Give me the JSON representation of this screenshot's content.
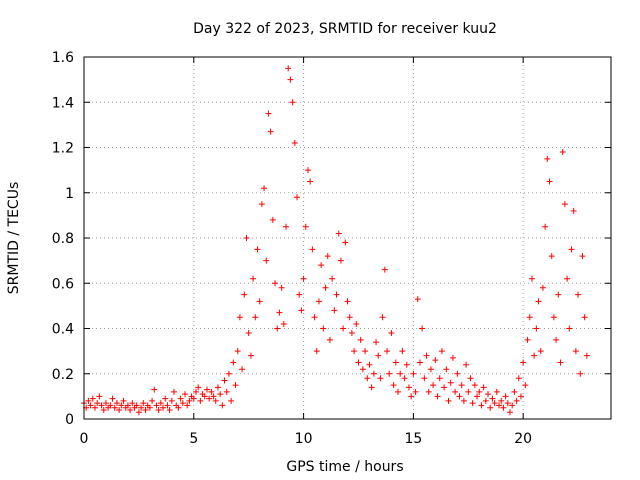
{
  "chart_data": {
    "type": "scatter",
    "title": "Day 322 of 2023, SRMTID for receiver kuu2",
    "xlabel": "GPS time / hours",
    "ylabel": "SRMTID / TECUs",
    "xlim": [
      0,
      24
    ],
    "ylim": [
      0,
      1.6
    ],
    "xticks": [
      0,
      5,
      10,
      15,
      20
    ],
    "xtick_labels": [
      "0",
      "5",
      "10",
      "15",
      "20"
    ],
    "yticks": [
      0,
      0.2,
      0.4,
      0.6,
      0.8,
      1,
      1.2,
      1.4,
      1.6
    ],
    "ytick_labels": [
      "0",
      "0.2",
      "0.4",
      "0.6",
      "0.8",
      "1",
      "1.2",
      "1.4",
      "1.6"
    ],
    "grid": true,
    "marker": "plus",
    "color": "#ff0000",
    "series": [
      {
        "name": "SRMTID",
        "points": [
          [
            0.0,
            0.07
          ],
          [
            0.1,
            0.05
          ],
          [
            0.2,
            0.08
          ],
          [
            0.3,
            0.06
          ],
          [
            0.4,
            0.09
          ],
          [
            0.5,
            0.05
          ],
          [
            0.6,
            0.07
          ],
          [
            0.7,
            0.1
          ],
          [
            0.8,
            0.06
          ],
          [
            0.9,
            0.04
          ],
          [
            1.0,
            0.07
          ],
          [
            1.1,
            0.05
          ],
          [
            1.2,
            0.06
          ],
          [
            1.3,
            0.09
          ],
          [
            1.4,
            0.05
          ],
          [
            1.5,
            0.07
          ],
          [
            1.6,
            0.04
          ],
          [
            1.7,
            0.06
          ],
          [
            1.8,
            0.08
          ],
          [
            1.9,
            0.05
          ],
          [
            2.0,
            0.06
          ],
          [
            2.1,
            0.04
          ],
          [
            2.2,
            0.07
          ],
          [
            2.3,
            0.05
          ],
          [
            2.4,
            0.06
          ],
          [
            2.5,
            0.03
          ],
          [
            2.6,
            0.05
          ],
          [
            2.7,
            0.07
          ],
          [
            2.8,
            0.04
          ],
          [
            2.9,
            0.06
          ],
          [
            3.0,
            0.05
          ],
          [
            3.1,
            0.08
          ],
          [
            3.2,
            0.13
          ],
          [
            3.3,
            0.06
          ],
          [
            3.4,
            0.04
          ],
          [
            3.5,
            0.07
          ],
          [
            3.6,
            0.05
          ],
          [
            3.7,
            0.09
          ],
          [
            3.8,
            0.06
          ],
          [
            3.9,
            0.04
          ],
          [
            4.0,
            0.08
          ],
          [
            4.1,
            0.12
          ],
          [
            4.2,
            0.06
          ],
          [
            4.3,
            0.05
          ],
          [
            4.4,
            0.09
          ],
          [
            4.5,
            0.07
          ],
          [
            4.6,
            0.11
          ],
          [
            4.7,
            0.06
          ],
          [
            4.8,
            0.08
          ],
          [
            4.9,
            0.1
          ],
          [
            5.0,
            0.09
          ],
          [
            5.1,
            0.12
          ],
          [
            5.2,
            0.14
          ],
          [
            5.3,
            0.08
          ],
          [
            5.4,
            0.11
          ],
          [
            5.5,
            0.1
          ],
          [
            5.6,
            0.13
          ],
          [
            5.7,
            0.09
          ],
          [
            5.8,
            0.12
          ],
          [
            5.9,
            0.1
          ],
          [
            6.0,
            0.08
          ],
          [
            6.1,
            0.14
          ],
          [
            6.2,
            0.11
          ],
          [
            6.3,
            0.06
          ],
          [
            6.4,
            0.17
          ],
          [
            6.5,
            0.12
          ],
          [
            6.6,
            0.2
          ],
          [
            6.7,
            0.08
          ],
          [
            6.8,
            0.25
          ],
          [
            6.9,
            0.15
          ],
          [
            7.0,
            0.3
          ],
          [
            7.1,
            0.45
          ],
          [
            7.2,
            0.22
          ],
          [
            7.3,
            0.55
          ],
          [
            7.4,
            0.8
          ],
          [
            7.5,
            0.38
          ],
          [
            7.6,
            0.28
          ],
          [
            7.7,
            0.62
          ],
          [
            7.8,
            0.45
          ],
          [
            7.9,
            0.75
          ],
          [
            8.0,
            0.52
          ],
          [
            8.1,
            0.95
          ],
          [
            8.2,
            1.02
          ],
          [
            8.3,
            0.7
          ],
          [
            8.4,
            1.35
          ],
          [
            8.5,
            1.27
          ],
          [
            8.6,
            0.88
          ],
          [
            8.7,
            0.6
          ],
          [
            8.8,
            0.4
          ],
          [
            8.9,
            0.47
          ],
          [
            9.0,
            0.58
          ],
          [
            9.1,
            0.42
          ],
          [
            9.2,
            0.85
          ],
          [
            9.3,
            1.55
          ],
          [
            9.4,
            1.5
          ],
          [
            9.5,
            1.4
          ],
          [
            9.6,
            1.22
          ],
          [
            9.7,
            0.98
          ],
          [
            9.8,
            0.55
          ],
          [
            9.9,
            0.48
          ],
          [
            10.0,
            0.62
          ],
          [
            10.1,
            0.85
          ],
          [
            10.2,
            1.1
          ],
          [
            10.3,
            1.05
          ],
          [
            10.4,
            0.75
          ],
          [
            10.5,
            0.45
          ],
          [
            10.6,
            0.3
          ],
          [
            10.7,
            0.52
          ],
          [
            10.8,
            0.68
          ],
          [
            10.9,
            0.4
          ],
          [
            11.0,
            0.58
          ],
          [
            11.1,
            0.72
          ],
          [
            11.2,
            0.35
          ],
          [
            11.3,
            0.62
          ],
          [
            11.4,
            0.48
          ],
          [
            11.5,
            0.55
          ],
          [
            11.6,
            0.82
          ],
          [
            11.7,
            0.7
          ],
          [
            11.8,
            0.4
          ],
          [
            11.9,
            0.78
          ],
          [
            12.0,
            0.52
          ],
          [
            12.1,
            0.45
          ],
          [
            12.2,
            0.38
          ],
          [
            12.3,
            0.3
          ],
          [
            12.4,
            0.42
          ],
          [
            12.5,
            0.25
          ],
          [
            12.6,
            0.35
          ],
          [
            12.7,
            0.22
          ],
          [
            12.8,
            0.3
          ],
          [
            12.9,
            0.18
          ],
          [
            13.0,
            0.24
          ],
          [
            13.1,
            0.14
          ],
          [
            13.2,
            0.2
          ],
          [
            13.3,
            0.34
          ],
          [
            13.4,
            0.28
          ],
          [
            13.5,
            0.18
          ],
          [
            13.6,
            0.45
          ],
          [
            13.7,
            0.66
          ],
          [
            13.8,
            0.3
          ],
          [
            13.9,
            0.2
          ],
          [
            14.0,
            0.38
          ],
          [
            14.1,
            0.15
          ],
          [
            14.2,
            0.25
          ],
          [
            14.3,
            0.12
          ],
          [
            14.4,
            0.2
          ],
          [
            14.5,
            0.3
          ],
          [
            14.6,
            0.18
          ],
          [
            14.7,
            0.24
          ],
          [
            14.8,
            0.14
          ],
          [
            14.9,
            0.1
          ],
          [
            15.0,
            0.2
          ],
          [
            15.1,
            0.12
          ],
          [
            15.2,
            0.53
          ],
          [
            15.3,
            0.25
          ],
          [
            15.4,
            0.4
          ],
          [
            15.5,
            0.18
          ],
          [
            15.6,
            0.28
          ],
          [
            15.7,
            0.12
          ],
          [
            15.8,
            0.22
          ],
          [
            15.9,
            0.15
          ],
          [
            16.0,
            0.26
          ],
          [
            16.1,
            0.1
          ],
          [
            16.2,
            0.18
          ],
          [
            16.3,
            0.3
          ],
          [
            16.4,
            0.14
          ],
          [
            16.5,
            0.22
          ],
          [
            16.6,
            0.08
          ],
          [
            16.7,
            0.16
          ],
          [
            16.8,
            0.27
          ],
          [
            16.9,
            0.12
          ],
          [
            17.0,
            0.2
          ],
          [
            17.1,
            0.1
          ],
          [
            17.2,
            0.15
          ],
          [
            17.3,
            0.08
          ],
          [
            17.4,
            0.24
          ],
          [
            17.5,
            0.12
          ],
          [
            17.6,
            0.18
          ],
          [
            17.7,
            0.07
          ],
          [
            17.8,
            0.15
          ],
          [
            17.9,
            0.1
          ],
          [
            18.0,
            0.12
          ],
          [
            18.1,
            0.06
          ],
          [
            18.2,
            0.14
          ],
          [
            18.3,
            0.08
          ],
          [
            18.4,
            0.11
          ],
          [
            18.5,
            0.05
          ],
          [
            18.6,
            0.09
          ],
          [
            18.7,
            0.07
          ],
          [
            18.8,
            0.12
          ],
          [
            18.9,
            0.06
          ],
          [
            19.0,
            0.08
          ],
          [
            19.1,
            0.05
          ],
          [
            19.2,
            0.1
          ],
          [
            19.3,
            0.07
          ],
          [
            19.4,
            0.03
          ],
          [
            19.5,
            0.06
          ],
          [
            19.6,
            0.12
          ],
          [
            19.7,
            0.08
          ],
          [
            19.8,
            0.18
          ],
          [
            19.9,
            0.1
          ],
          [
            20.0,
            0.25
          ],
          [
            20.1,
            0.15
          ],
          [
            20.2,
            0.35
          ],
          [
            20.3,
            0.45
          ],
          [
            20.4,
            0.62
          ],
          [
            20.5,
            0.28
          ],
          [
            20.6,
            0.4
          ],
          [
            20.7,
            0.52
          ],
          [
            20.8,
            0.3
          ],
          [
            20.9,
            0.58
          ],
          [
            21.0,
            0.85
          ],
          [
            21.1,
            1.15
          ],
          [
            21.2,
            1.05
          ],
          [
            21.3,
            0.72
          ],
          [
            21.4,
            0.45
          ],
          [
            21.5,
            0.35
          ],
          [
            21.6,
            0.55
          ],
          [
            21.7,
            0.25
          ],
          [
            21.8,
            1.18
          ],
          [
            21.9,
            0.95
          ],
          [
            22.0,
            0.62
          ],
          [
            22.1,
            0.4
          ],
          [
            22.2,
            0.75
          ],
          [
            22.3,
            0.92
          ],
          [
            22.4,
            0.3
          ],
          [
            22.5,
            0.55
          ],
          [
            22.6,
            0.2
          ],
          [
            22.7,
            0.72
          ],
          [
            22.8,
            0.45
          ],
          [
            22.9,
            0.28
          ]
        ]
      }
    ]
  }
}
